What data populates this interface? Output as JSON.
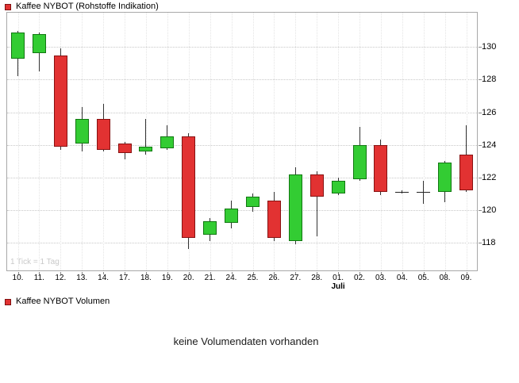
{
  "price_panel": {
    "legend": "Kaffee NYBOT (Rohstoffe Indikation)",
    "watermark": "1 Tick = 1 Tag"
  },
  "volume_panel": {
    "legend": "Kaffee NYBOT Volumen",
    "message": "keine Volumendaten vorhanden"
  },
  "colors": {
    "up": "#33cc33",
    "up_border": "#117711",
    "down": "#e23232",
    "down_border": "#871111",
    "wick": "#333333",
    "doji": "#222222",
    "grid_h": "#c8c8c8",
    "grid_v": "#e4e4e4",
    "legend_swatch": "#e23232",
    "legend_swatch_border": "#801010"
  },
  "chart_data": {
    "type": "candlestick",
    "title": "Kaffee NYBOT (Rohstoffe Indikation)",
    "x_labels": [
      "10.",
      "11.",
      "12.",
      "13.",
      "14.",
      "17.",
      "18.",
      "19.",
      "20.",
      "21.",
      "24.",
      "25.",
      "26.",
      "27.",
      "28.",
      "01.",
      "02.",
      "03.",
      "04.",
      "05.",
      "08.",
      "09."
    ],
    "month_label": {
      "index": 15,
      "text": "Juli"
    },
    "y_ticks": [
      118,
      120,
      122,
      124,
      126,
      128,
      130
    ],
    "ylim": [
      116.3,
      132.1
    ],
    "ohlc_format": [
      "open",
      "high",
      "low",
      "close"
    ],
    "ohlc": [
      [
        129.3,
        131.0,
        128.2,
        130.9
      ],
      [
        129.6,
        130.9,
        128.5,
        130.8
      ],
      [
        129.5,
        129.9,
        123.7,
        123.9
      ],
      [
        124.1,
        126.3,
        123.6,
        125.6
      ],
      [
        125.6,
        126.5,
        123.6,
        123.7
      ],
      [
        124.1,
        124.2,
        123.1,
        123.5
      ],
      [
        123.6,
        125.6,
        123.4,
        123.9
      ],
      [
        123.8,
        125.2,
        123.7,
        124.5
      ],
      [
        124.5,
        124.7,
        117.6,
        118.3
      ],
      [
        118.5,
        119.5,
        118.1,
        119.3
      ],
      [
        119.2,
        120.6,
        118.9,
        120.1
      ],
      [
        120.2,
        121.0,
        119.9,
        120.8
      ],
      [
        120.6,
        121.1,
        118.1,
        118.3
      ],
      [
        118.1,
        122.6,
        117.9,
        122.2
      ],
      [
        122.2,
        122.4,
        118.4,
        120.8
      ],
      [
        121.0,
        122.0,
        120.9,
        121.8
      ],
      [
        121.9,
        125.1,
        121.8,
        124.0
      ],
      [
        124.0,
        124.3,
        120.9,
        121.1
      ],
      [
        121.1,
        121.2,
        121.0,
        121.1
      ],
      [
        121.1,
        121.8,
        120.4,
        121.1
      ],
      [
        121.1,
        123.0,
        120.5,
        122.9
      ],
      [
        123.4,
        125.2,
        121.1,
        121.2
      ]
    ],
    "grid": true,
    "legend_position": "top-left"
  }
}
